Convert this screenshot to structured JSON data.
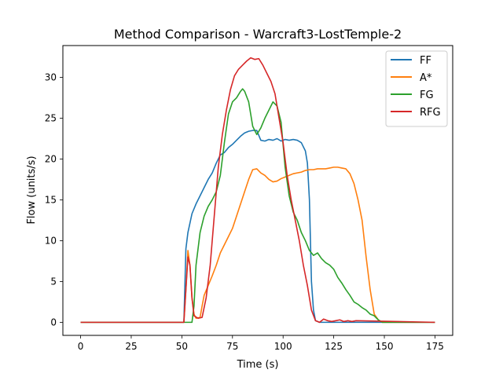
{
  "chart_data": {
    "type": "line",
    "title": "Method Comparison - Warcraft3-LostTemple-2",
    "xlabel": "Time (s)",
    "ylabel": "Flow (units/s)",
    "xlim": [
      -8.75,
      183.75
    ],
    "ylim": [
      -1.6,
      33.9
    ],
    "xticks": [
      0,
      25,
      50,
      75,
      100,
      125,
      150,
      175
    ],
    "yticks": [
      0,
      5,
      10,
      15,
      20,
      25,
      30
    ],
    "grid": false,
    "legend": "upper right",
    "series": [
      {
        "name": "FF",
        "color": "#1f77b4",
        "points": [
          [
            0,
            0
          ],
          [
            50,
            0
          ],
          [
            51,
            0
          ],
          [
            52,
            9
          ],
          [
            53,
            11
          ],
          [
            55,
            13.3
          ],
          [
            57,
            14.5
          ],
          [
            59,
            15.5
          ],
          [
            61,
            16.5
          ],
          [
            63,
            17.5
          ],
          [
            65,
            18.3
          ],
          [
            67,
            19.5
          ],
          [
            69,
            20.5
          ],
          [
            71,
            20.8
          ],
          [
            73,
            21.4
          ],
          [
            75,
            21.8
          ],
          [
            77,
            22.3
          ],
          [
            79,
            22.8
          ],
          [
            81,
            23.2
          ],
          [
            83,
            23.4
          ],
          [
            85,
            23.5
          ],
          [
            87,
            23.5
          ],
          [
            89,
            22.3
          ],
          [
            91,
            22.2
          ],
          [
            93,
            22.4
          ],
          [
            95,
            22.3
          ],
          [
            97,
            22.5
          ],
          [
            99,
            22.2
          ],
          [
            101,
            22.4
          ],
          [
            103,
            22.3
          ],
          [
            105,
            22.4
          ],
          [
            107,
            22.3
          ],
          [
            109,
            22.0
          ],
          [
            111,
            21.0
          ],
          [
            112,
            19.5
          ],
          [
            113,
            15
          ],
          [
            114,
            5
          ],
          [
            115,
            1.5
          ],
          [
            116,
            0.2
          ],
          [
            118,
            0
          ],
          [
            175,
            0
          ]
        ]
      },
      {
        "name": "A*",
        "color": "#ff7f0e",
        "points": [
          [
            0,
            0
          ],
          [
            50,
            0
          ],
          [
            51,
            0
          ],
          [
            52,
            4
          ],
          [
            53,
            8.8
          ],
          [
            54,
            7
          ],
          [
            55,
            3
          ],
          [
            56,
            1
          ],
          [
            57,
            0.5
          ],
          [
            59,
            0.6
          ],
          [
            60,
            2
          ],
          [
            61,
            3.3
          ],
          [
            63,
            4.5
          ],
          [
            65,
            5.7
          ],
          [
            67,
            7
          ],
          [
            69,
            8.5
          ],
          [
            71,
            9.5
          ],
          [
            73,
            10.5
          ],
          [
            75,
            11.5
          ],
          [
            77,
            13
          ],
          [
            79,
            14.5
          ],
          [
            81,
            16
          ],
          [
            83,
            17.5
          ],
          [
            85,
            18.7
          ],
          [
            87,
            18.8
          ],
          [
            89,
            18.3
          ],
          [
            91,
            18
          ],
          [
            93,
            17.5
          ],
          [
            95,
            17.2
          ],
          [
            97,
            17.3
          ],
          [
            99,
            17.6
          ],
          [
            101,
            17.8
          ],
          [
            103,
            18
          ],
          [
            105,
            18.2
          ],
          [
            107,
            18.3
          ],
          [
            109,
            18.4
          ],
          [
            111,
            18.6
          ],
          [
            113,
            18.7
          ],
          [
            115,
            18.7
          ],
          [
            117,
            18.8
          ],
          [
            119,
            18.8
          ],
          [
            121,
            18.8
          ],
          [
            123,
            18.9
          ],
          [
            125,
            19
          ],
          [
            127,
            19
          ],
          [
            129,
            18.9
          ],
          [
            131,
            18.8
          ],
          [
            133,
            18.2
          ],
          [
            135,
            17
          ],
          [
            137,
            15
          ],
          [
            139,
            12.5
          ],
          [
            141,
            8
          ],
          [
            143,
            4
          ],
          [
            145,
            1
          ],
          [
            147,
            0.3
          ],
          [
            149,
            0
          ],
          [
            175,
            0
          ]
        ]
      },
      {
        "name": "FG",
        "color": "#2ca02c",
        "points": [
          [
            0,
            0
          ],
          [
            50,
            0
          ],
          [
            55,
            0
          ],
          [
            56,
            2
          ],
          [
            57,
            7
          ],
          [
            59,
            11
          ],
          [
            61,
            13
          ],
          [
            63,
            14.2
          ],
          [
            65,
            15
          ],
          [
            67,
            16
          ],
          [
            69,
            18
          ],
          [
            71,
            22
          ],
          [
            73,
            25.5
          ],
          [
            75,
            27
          ],
          [
            77,
            27.5
          ],
          [
            79,
            28.3
          ],
          [
            80,
            28.6
          ],
          [
            81,
            28.3
          ],
          [
            83,
            27
          ],
          [
            85,
            24
          ],
          [
            87,
            23
          ],
          [
            89,
            23.8
          ],
          [
            91,
            25
          ],
          [
            93,
            26
          ],
          [
            95,
            27
          ],
          [
            97,
            26.5
          ],
          [
            99,
            24.5
          ],
          [
            101,
            19
          ],
          [
            103,
            15.5
          ],
          [
            105,
            13.5
          ],
          [
            107,
            12.5
          ],
          [
            109,
            11
          ],
          [
            111,
            10
          ],
          [
            113,
            8.8
          ],
          [
            115,
            8.2
          ],
          [
            117,
            8.5
          ],
          [
            119,
            7.8
          ],
          [
            121,
            7.3
          ],
          [
            123,
            7
          ],
          [
            125,
            6.5
          ],
          [
            127,
            5.5
          ],
          [
            129,
            4.8
          ],
          [
            131,
            4
          ],
          [
            133,
            3.3
          ],
          [
            135,
            2.5
          ],
          [
            137,
            2.2
          ],
          [
            139,
            1.8
          ],
          [
            141,
            1.5
          ],
          [
            143,
            1
          ],
          [
            145,
            0.8
          ],
          [
            147,
            0.3
          ],
          [
            149,
            0
          ],
          [
            175,
            0
          ]
        ]
      },
      {
        "name": "RFG",
        "color": "#d62728",
        "points": [
          [
            0,
            0
          ],
          [
            50,
            0
          ],
          [
            51,
            0
          ],
          [
            52,
            4
          ],
          [
            53,
            8
          ],
          [
            54,
            7
          ],
          [
            55,
            3
          ],
          [
            56,
            0.8
          ],
          [
            58,
            0.5
          ],
          [
            60,
            0.6
          ],
          [
            62,
            3
          ],
          [
            64,
            7
          ],
          [
            66,
            13
          ],
          [
            68,
            19
          ],
          [
            70,
            23
          ],
          [
            72,
            26
          ],
          [
            74,
            28.5
          ],
          [
            76,
            30.2
          ],
          [
            78,
            31
          ],
          [
            80,
            31.5
          ],
          [
            82,
            32
          ],
          [
            84,
            32.4
          ],
          [
            86,
            32.2
          ],
          [
            88,
            32.3
          ],
          [
            90,
            31.5
          ],
          [
            92,
            30.5
          ],
          [
            94,
            29.5
          ],
          [
            96,
            28
          ],
          [
            98,
            25
          ],
          [
            100,
            22
          ],
          [
            102,
            18
          ],
          [
            104,
            15
          ],
          [
            106,
            12.5
          ],
          [
            108,
            10
          ],
          [
            110,
            7
          ],
          [
            112,
            4.5
          ],
          [
            114,
            1.5
          ],
          [
            116,
            0.2
          ],
          [
            118,
            0
          ],
          [
            120,
            0.4
          ],
          [
            122,
            0.2
          ],
          [
            124,
            0.1
          ],
          [
            126,
            0.2
          ],
          [
            128,
            0.3
          ],
          [
            130,
            0.1
          ],
          [
            132,
            0.2
          ],
          [
            134,
            0.1
          ],
          [
            136,
            0.2
          ],
          [
            175,
            0
          ]
        ]
      }
    ]
  }
}
